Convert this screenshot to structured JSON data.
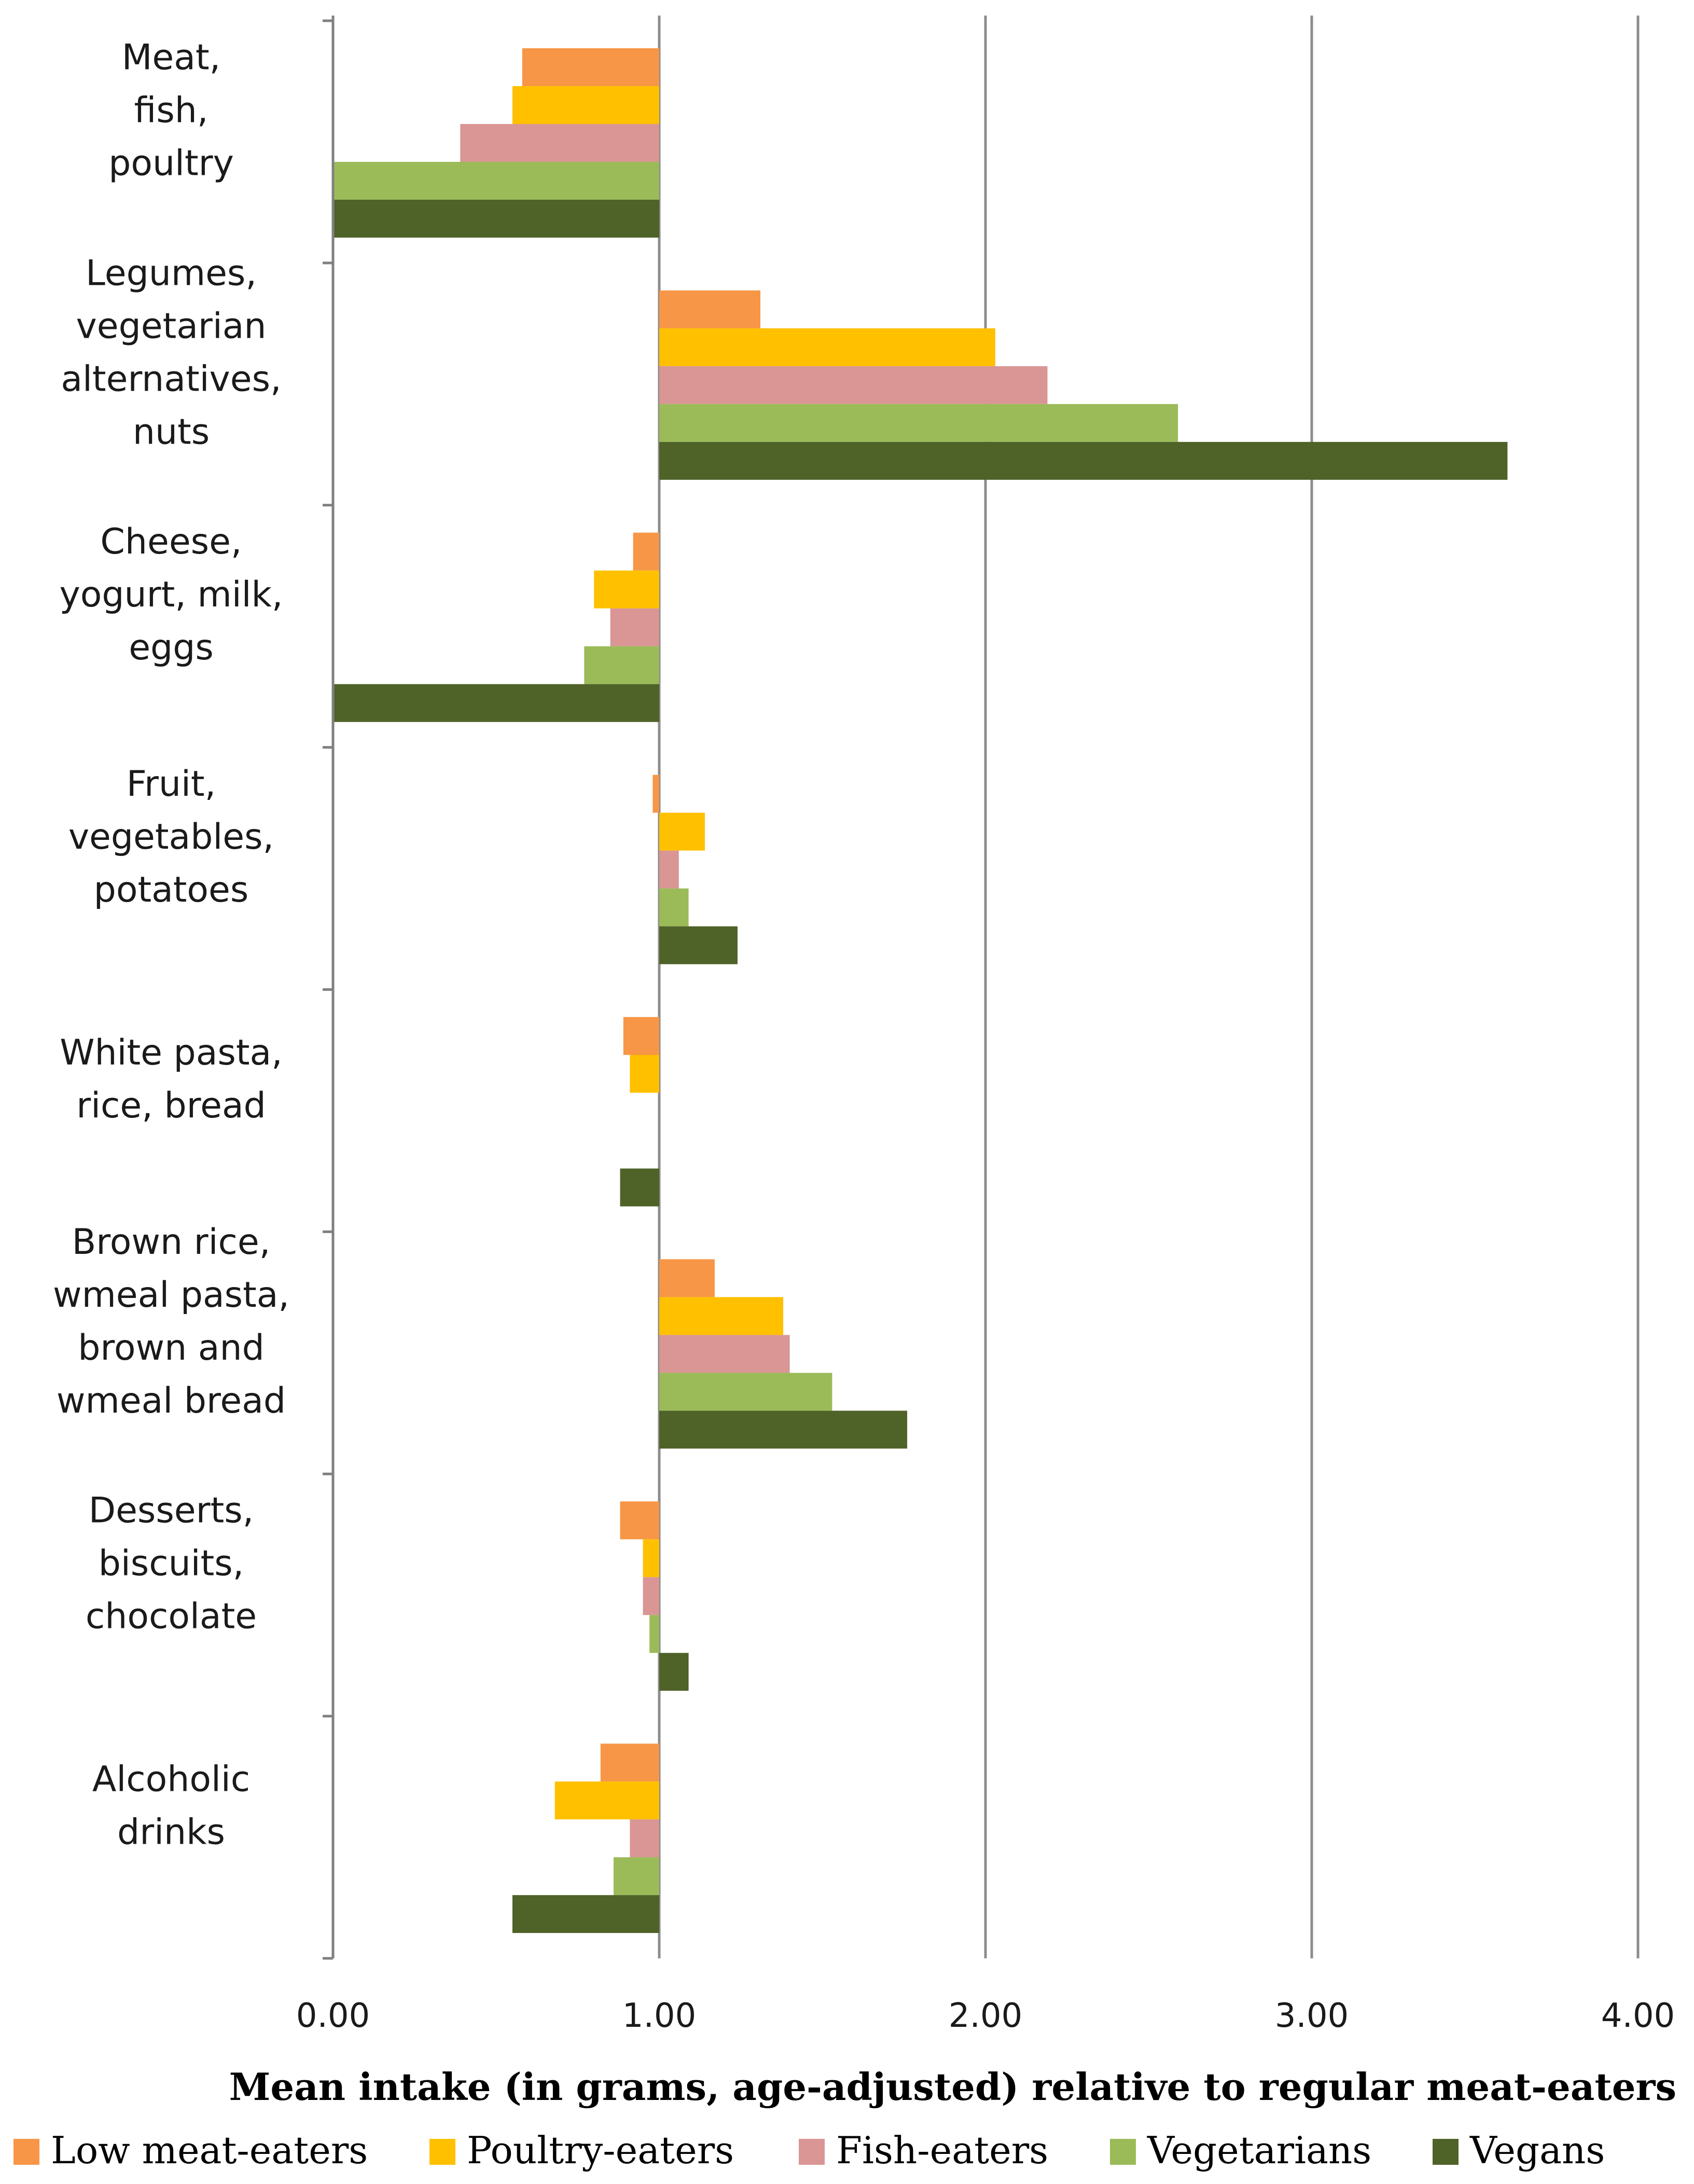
{
  "chart_data": {
    "type": "bar",
    "orientation": "horizontal",
    "title": "",
    "xlabel": "Mean intake (in grams, age-adjusted) relative to regular meat-eaters",
    "ylabel": "",
    "xlim": [
      0,
      4
    ],
    "baseline": 1.0,
    "grid": true,
    "x_ticks": [
      "0.00",
      "1.00",
      "2.00",
      "3.00",
      "4.00"
    ],
    "legend_position": "bottom",
    "categories": [
      [
        "Meat,",
        "fish,",
        "poultry"
      ],
      [
        "Legumes,",
        "vegetarian",
        "alternatives,",
        "nuts"
      ],
      [
        "Cheese,",
        "yogurt, milk,",
        "eggs"
      ],
      [
        "Fruit,",
        "vegetables,",
        "potatoes"
      ],
      [
        "White pasta,",
        "rice, bread"
      ],
      [
        "Brown rice,",
        "wmeal pasta,",
        "brown and",
        "wmeal bread"
      ],
      [
        "Desserts,",
        "biscuits,",
        "chocolate"
      ],
      [
        "Alcoholic",
        "drinks"
      ]
    ],
    "series": [
      {
        "name": "Low meat-eaters",
        "color": "#F79646",
        "values": [
          0.58,
          1.31,
          0.92,
          0.98,
          0.89,
          1.17,
          0.88,
          0.82
        ]
      },
      {
        "name": "Poultry-eaters",
        "color": "#FFC000",
        "values": [
          0.55,
          2.03,
          0.8,
          1.14,
          0.91,
          1.38,
          0.95,
          0.68
        ]
      },
      {
        "name": "Fish-eaters",
        "color": "#D99694",
        "values": [
          0.39,
          2.19,
          0.85,
          1.06,
          1.0,
          1.4,
          0.95,
          0.91
        ]
      },
      {
        "name": "Vegetarians",
        "color": "#9BBB59",
        "values": [
          0.0,
          2.59,
          0.77,
          1.09,
          1.0,
          1.53,
          0.97,
          0.86
        ]
      },
      {
        "name": "Vegans",
        "color": "#4F6228",
        "values": [
          0.0,
          3.6,
          0.0,
          1.24,
          0.88,
          1.76,
          1.09,
          0.55
        ]
      }
    ]
  }
}
